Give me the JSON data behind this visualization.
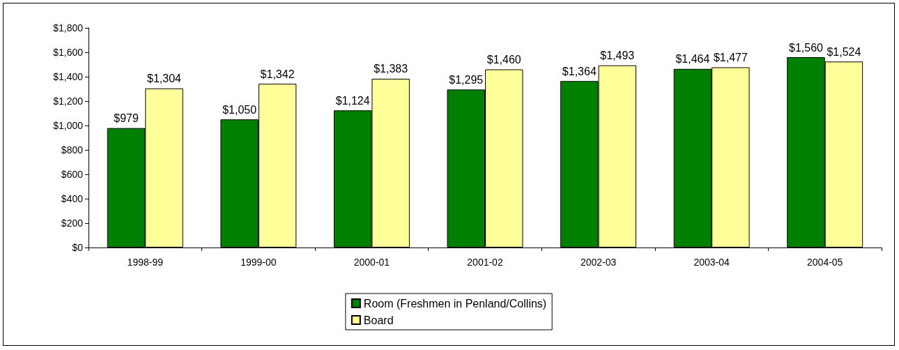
{
  "chart_data": {
    "type": "bar",
    "categories": [
      "1998-99",
      "1999-00",
      "2000-01",
      "2001-02",
      "2002-03",
      "2003-04",
      "2004-05"
    ],
    "series": [
      {
        "name": "Room (Freshmen in Penland/Collins)",
        "color": "#008000",
        "values": [
          979,
          1050,
          1124,
          1295,
          1364,
          1464,
          1560
        ],
        "value_labels": [
          "$979",
          "$1,050",
          "$1,124",
          "$1,295",
          "$1,364",
          "$1,464",
          "$1,560"
        ]
      },
      {
        "name": "Board",
        "color": "#ffff99",
        "values": [
          1304,
          1342,
          1383,
          1460,
          1493,
          1477,
          1524
        ],
        "value_labels": [
          "$1,304",
          "$1,342",
          "$1,383",
          "$1,460",
          "$1,493",
          "$1,477",
          "$1,524"
        ]
      }
    ],
    "ylim": [
      0,
      1800
    ],
    "yticks": [
      {
        "value": 0,
        "label": "$0"
      },
      {
        "value": 200,
        "label": "$200"
      },
      {
        "value": 400,
        "label": "$400"
      },
      {
        "value": 600,
        "label": "$600"
      },
      {
        "value": 800,
        "label": "$800"
      },
      {
        "value": 1000,
        "label": "$1,000"
      },
      {
        "value": 1200,
        "label": "$1,200"
      },
      {
        "value": 1400,
        "label": "$1,400"
      },
      {
        "value": 1600,
        "label": "$1,600"
      },
      {
        "value": 1800,
        "label": "$1,800"
      }
    ],
    "grid": false,
    "legend": "bottom"
  }
}
